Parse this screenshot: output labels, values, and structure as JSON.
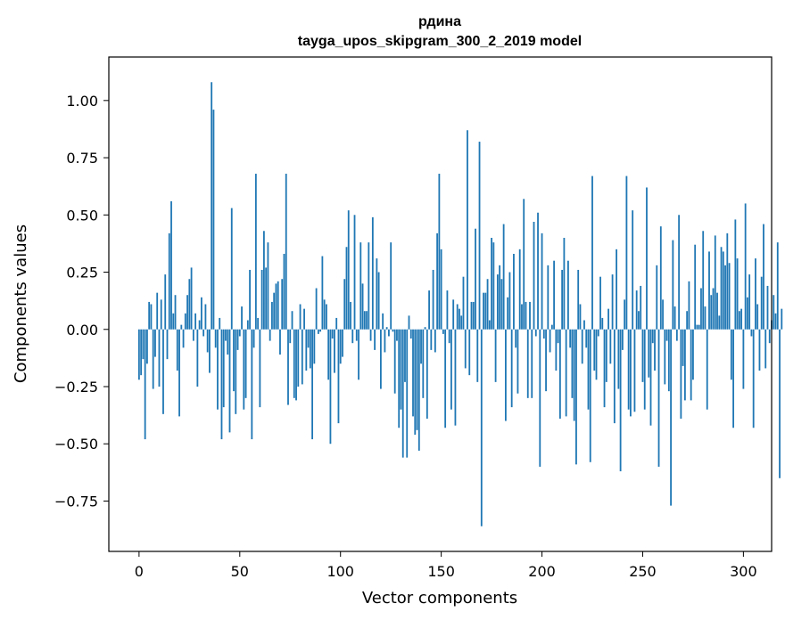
{
  "chart_data": {
    "type": "bar",
    "title": "рдина",
    "subtitle": "tayga_upos_skipgram_300_2_2019 model",
    "xlabel": "Vector components",
    "ylabel": "Components values",
    "xlim": [
      -15,
      314
    ],
    "ylim": [
      -0.97,
      1.19
    ],
    "xticks": [
      0,
      50,
      100,
      150,
      200,
      250,
      300
    ],
    "yticks": [
      -0.75,
      -0.5,
      -0.25,
      0.0,
      0.25,
      0.5,
      0.75,
      1.0
    ],
    "ytick_labels": [
      "−0.75",
      "−0.50",
      "−0.25",
      "0.00",
      "0.25",
      "0.50",
      "0.75",
      "1.00"
    ],
    "xtick_labels": [
      "0",
      "50",
      "100",
      "150",
      "200",
      "250",
      "300"
    ],
    "bar_color": "#1f77b4",
    "grid": false,
    "values": [
      -0.22,
      -0.2,
      -0.13,
      -0.48,
      -0.15,
      0.12,
      0.11,
      -0.26,
      -0.12,
      0.16,
      -0.25,
      0.13,
      -0.37,
      0.24,
      -0.13,
      0.42,
      0.56,
      0.07,
      0.15,
      -0.18,
      -0.38,
      0.02,
      -0.08,
      0.07,
      0.15,
      0.22,
      0.27,
      -0.05,
      0.07,
      -0.25,
      0.04,
      0.14,
      -0.03,
      0.11,
      -0.1,
      -0.19,
      1.08,
      0.96,
      -0.08,
      -0.35,
      0.05,
      -0.48,
      -0.34,
      -0.05,
      -0.11,
      -0.45,
      0.53,
      -0.27,
      -0.37,
      -0.09,
      -0.03,
      0.1,
      -0.35,
      -0.3,
      0.04,
      0.26,
      -0.48,
      -0.08,
      0.68,
      0.05,
      -0.34,
      0.26,
      0.43,
      0.27,
      0.38,
      -0.05,
      0.12,
      0.16,
      0.2,
      0.21,
      -0.11,
      0.22,
      0.33,
      0.68,
      -0.33,
      -0.06,
      0.08,
      -0.3,
      -0.31,
      -0.25,
      0.11,
      -0.24,
      0.09,
      -0.18,
      -0.08,
      -0.17,
      -0.48,
      -0.15,
      0.18,
      -0.02,
      -0.01,
      0.32,
      0.13,
      0.11,
      -0.22,
      -0.5,
      -0.04,
      -0.19,
      0.05,
      -0.41,
      -0.15,
      -0.12,
      0.22,
      0.36,
      0.52,
      0.12,
      -0.06,
      0.5,
      -0.05,
      -0.22,
      0.38,
      0.2,
      0.08,
      0.08,
      0.38,
      -0.05,
      0.49,
      -0.09,
      0.31,
      0.25,
      -0.26,
      0.07,
      -0.1,
      0.01,
      -0.03,
      0.38,
      -0.01,
      -0.28,
      -0.05,
      -0.43,
      -0.35,
      -0.56,
      -0.23,
      -0.56,
      0.06,
      -0.04,
      -0.38,
      -0.46,
      -0.44,
      -0.53,
      -0.15,
      -0.3,
      0.01,
      -0.39,
      0.17,
      -0.09,
      0.26,
      -0.1,
      0.42,
      0.68,
      0.35,
      -0.02,
      -0.43,
      0.17,
      -0.06,
      -0.35,
      0.13,
      -0.42,
      0.11,
      0.09,
      0.06,
      0.23,
      -0.17,
      0.87,
      -0.2,
      0.12,
      0.12,
      0.44,
      -0.23,
      0.82,
      -0.86,
      0.16,
      0.16,
      0.22,
      0.04,
      0.4,
      0.38,
      -0.23,
      0.24,
      0.28,
      0.22,
      0.46,
      -0.4,
      0.14,
      0.25,
      -0.34,
      0.33,
      -0.08,
      -0.28,
      0.35,
      0.11,
      0.57,
      0.12,
      -0.3,
      0.12,
      -0.3,
      0.47,
      -0.03,
      0.51,
      -0.6,
      0.42,
      -0.04,
      -0.27,
      0.28,
      -0.1,
      0.02,
      0.3,
      -0.18,
      -0.06,
      -0.39,
      0.26,
      0.4,
      -0.38,
      0.3,
      -0.08,
      -0.3,
      -0.4,
      -0.59,
      0.26,
      0.11,
      -0.15,
      0.04,
      -0.08,
      -0.35,
      -0.58,
      0.67,
      -0.18,
      -0.22,
      -0.03,
      0.23,
      0.05,
      -0.34,
      -0.23,
      0.09,
      -0.15,
      0.24,
      -0.41,
      0.35,
      -0.26,
      -0.62,
      -0.09,
      0.13,
      0.67,
      -0.35,
      -0.38,
      0.52,
      -0.36,
      0.17,
      0.08,
      0.19,
      -0.23,
      -0.35,
      0.62,
      -0.21,
      -0.42,
      -0.06,
      -0.18,
      0.28,
      -0.6,
      0.45,
      0.13,
      -0.24,
      -0.05,
      -0.27,
      -0.77,
      0.39,
      0.1,
      -0.05,
      0.5,
      -0.39,
      -0.16,
      -0.31,
      0.08,
      0.21,
      -0.31,
      -0.22,
      0.37,
      0.02,
      0.02,
      0.18,
      0.43,
      0.1,
      -0.35,
      0.34,
      0.15,
      0.18,
      0.41,
      0.16,
      0.06,
      0.36,
      0.34,
      0.28,
      0.42,
      0.29,
      -0.22,
      -0.43,
      0.48,
      0.31,
      0.08,
      0.09,
      -0.26,
      0.55,
      0.14,
      0.24,
      -0.03,
      -0.43,
      0.31,
      0.11,
      -0.18,
      0.23,
      0.46,
      -0.17,
      0.19,
      -0.06,
      0.04,
      0.15,
      0.07,
      0.38,
      -0.65,
      0.09
    ]
  }
}
